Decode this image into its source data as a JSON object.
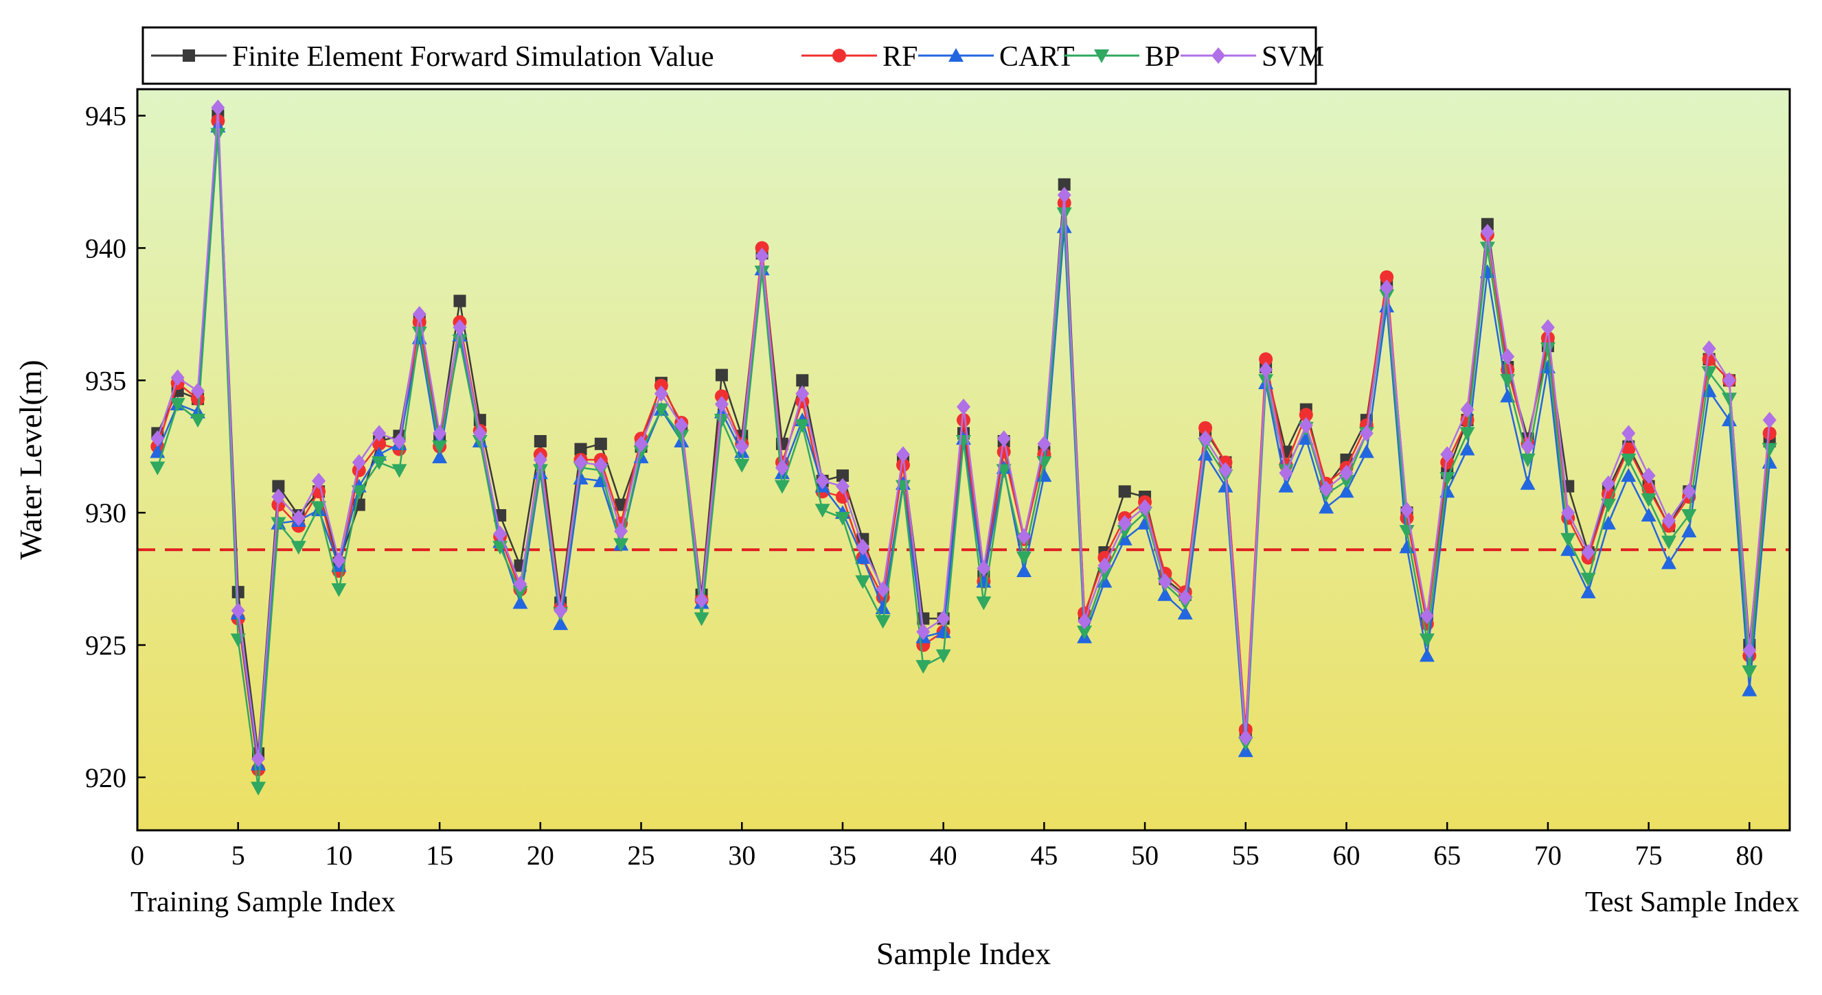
{
  "chart_data": {
    "type": "line",
    "title": "",
    "xlabel": "Sample Index",
    "ylabel": "Water Level(m)",
    "xlim": [
      0,
      82
    ],
    "ylim": [
      918,
      946
    ],
    "x_ticks": [
      0,
      5,
      10,
      15,
      20,
      25,
      30,
      35,
      40,
      45,
      50,
      55,
      60,
      65,
      70,
      75,
      80
    ],
    "y_ticks": [
      920,
      925,
      930,
      935,
      940,
      945
    ],
    "sub_labels": {
      "left": "Training Sample Index",
      "right": "Test Sample Index"
    },
    "reference_line": {
      "y": 928.6,
      "color": "#e02020",
      "style": "dashed"
    },
    "background_gradient": {
      "top": "#e0f5c4",
      "bottom": "#ece064"
    },
    "legend_position": "top-left",
    "x": [
      1,
      2,
      3,
      4,
      5,
      6,
      7,
      8,
      9,
      10,
      11,
      12,
      13,
      14,
      15,
      16,
      17,
      18,
      19,
      20,
      21,
      22,
      23,
      24,
      25,
      26,
      27,
      28,
      29,
      30,
      31,
      32,
      33,
      34,
      35,
      36,
      37,
      38,
      39,
      40,
      41,
      42,
      43,
      44,
      45,
      46,
      47,
      48,
      49,
      50,
      51,
      52,
      53,
      54,
      55,
      56,
      57,
      58,
      59,
      60,
      61,
      62,
      63,
      64,
      65,
      66,
      67,
      68,
      69,
      70,
      71,
      72,
      73,
      74,
      75,
      76,
      77,
      78,
      79,
      80,
      81
    ],
    "series": [
      {
        "name": "Finite Element Forward Simulation Value",
        "color": "#3a3a3a",
        "marker": "square",
        "values": [
          933.0,
          934.6,
          934.3,
          945.0,
          927.0,
          920.9,
          931.0,
          929.9,
          930.8,
          928.1,
          930.3,
          932.7,
          932.9,
          937.3,
          932.8,
          938.0,
          933.5,
          929.9,
          928.0,
          932.7,
          926.6,
          932.4,
          932.6,
          930.3,
          932.5,
          934.9,
          933.3,
          926.9,
          935.2,
          932.9,
          939.8,
          932.6,
          935.0,
          931.2,
          931.4,
          929.0,
          927.0,
          932.0,
          926.0,
          926.0,
          933.0,
          927.6,
          932.7,
          929.0,
          932.3,
          942.4,
          926.1,
          928.5,
          930.8,
          930.6,
          927.5,
          926.9,
          933.1,
          931.9,
          921.7,
          935.5,
          932.3,
          933.9,
          931.0,
          932.0,
          933.5,
          938.6,
          930.0,
          926.0,
          931.5,
          933.5,
          940.9,
          935.5,
          932.8,
          936.3,
          931.0,
          928.5,
          930.9,
          932.5,
          931.0,
          929.5,
          930.8,
          935.8,
          935.0,
          925.0,
          932.7
        ]
      },
      {
        "name": "RF",
        "color": "#f03030",
        "marker": "circle",
        "values": [
          932.5,
          934.9,
          934.3,
          944.8,
          926.0,
          920.3,
          930.3,
          929.5,
          930.8,
          927.8,
          931.6,
          932.6,
          932.4,
          937.2,
          932.5,
          937.2,
          933.1,
          929.1,
          927.1,
          932.2,
          926.4,
          932.0,
          932.0,
          929.6,
          932.8,
          934.8,
          933.4,
          926.7,
          934.4,
          932.6,
          940.0,
          931.9,
          934.2,
          930.8,
          930.6,
          928.3,
          926.8,
          931.8,
          925.0,
          925.5,
          933.5,
          927.4,
          932.3,
          929.0,
          932.2,
          941.7,
          926.2,
          928.3,
          929.8,
          930.4,
          927.7,
          927.0,
          933.2,
          931.9,
          921.8,
          935.8,
          931.8,
          933.7,
          931.1,
          931.7,
          933.3,
          938.9,
          929.8,
          925.8,
          931.9,
          933.5,
          940.5,
          935.4,
          932.6,
          936.6,
          929.8,
          928.3,
          930.7,
          932.4,
          930.9,
          929.5,
          930.6,
          935.8,
          935.0,
          924.6,
          933.0
        ]
      },
      {
        "name": "CART",
        "color": "#2266e0",
        "marker": "triangle-up",
        "values": [
          932.3,
          934.1,
          933.8,
          944.6,
          926.2,
          920.5,
          929.6,
          929.7,
          930.1,
          928.0,
          931.0,
          932.2,
          932.6,
          936.6,
          932.1,
          936.7,
          932.7,
          928.9,
          926.6,
          931.5,
          925.8,
          931.3,
          931.2,
          928.8,
          932.1,
          933.9,
          932.7,
          926.6,
          933.8,
          932.3,
          939.2,
          931.5,
          933.5,
          931.0,
          930.0,
          928.3,
          926.4,
          931.1,
          925.3,
          925.5,
          932.8,
          927.4,
          931.7,
          927.8,
          931.4,
          940.8,
          925.3,
          927.4,
          929.0,
          929.6,
          926.9,
          926.2,
          932.2,
          931.0,
          921.0,
          934.9,
          931.0,
          932.8,
          930.2,
          930.8,
          932.3,
          937.8,
          928.7,
          924.6,
          930.8,
          932.4,
          939.1,
          934.4,
          931.1,
          935.5,
          928.6,
          927.0,
          929.6,
          931.4,
          929.9,
          928.1,
          929.3,
          934.6,
          933.5,
          923.3,
          931.9
        ]
      },
      {
        "name": "BP",
        "color": "#2fa860",
        "marker": "triangle-down",
        "values": [
          931.7,
          934.1,
          933.5,
          944.3,
          925.2,
          919.6,
          929.6,
          928.7,
          930.2,
          927.1,
          930.8,
          931.9,
          931.6,
          936.8,
          932.5,
          936.5,
          932.7,
          928.7,
          927.0,
          931.6,
          926.2,
          931.7,
          931.6,
          928.8,
          932.3,
          933.9,
          932.9,
          926.0,
          933.5,
          931.8,
          939.1,
          931.0,
          933.3,
          930.1,
          929.8,
          927.4,
          925.9,
          931.0,
          924.2,
          924.6,
          932.7,
          926.6,
          931.6,
          928.3,
          931.9,
          941.3,
          925.5,
          927.7,
          929.3,
          930.0,
          927.3,
          926.6,
          932.6,
          931.4,
          921.3,
          935.0,
          931.6,
          933.2,
          930.7,
          931.2,
          933.0,
          938.2,
          929.3,
          925.2,
          931.3,
          933.0,
          940.0,
          935.0,
          932.0,
          936.2,
          929.0,
          927.5,
          930.3,
          932.0,
          930.5,
          928.9,
          929.9,
          935.3,
          934.3,
          924.0,
          932.4
        ]
      },
      {
        "name": "SVM",
        "color": "#b070e8",
        "marker": "diamond",
        "values": [
          932.8,
          935.1,
          934.6,
          945.3,
          926.3,
          920.7,
          930.6,
          929.8,
          931.2,
          928.2,
          931.9,
          933.0,
          932.7,
          937.5,
          933.0,
          937.0,
          933.0,
          929.2,
          927.3,
          932.0,
          926.3,
          931.9,
          931.8,
          929.3,
          932.6,
          934.5,
          933.3,
          926.7,
          934.1,
          932.5,
          939.7,
          931.7,
          934.5,
          931.2,
          931.0,
          928.7,
          927.1,
          932.2,
          925.5,
          926.0,
          934.0,
          927.9,
          932.8,
          929.1,
          932.6,
          942.0,
          925.9,
          928.0,
          929.6,
          930.2,
          927.4,
          926.8,
          932.8,
          931.6,
          921.5,
          935.4,
          931.5,
          933.3,
          930.9,
          931.5,
          933.0,
          938.5,
          930.1,
          926.1,
          932.2,
          933.9,
          940.6,
          935.9,
          932.5,
          937.0,
          930.0,
          928.5,
          931.1,
          933.0,
          931.4,
          929.7,
          930.8,
          936.2,
          935.0,
          924.8,
          933.5
        ]
      }
    ]
  }
}
